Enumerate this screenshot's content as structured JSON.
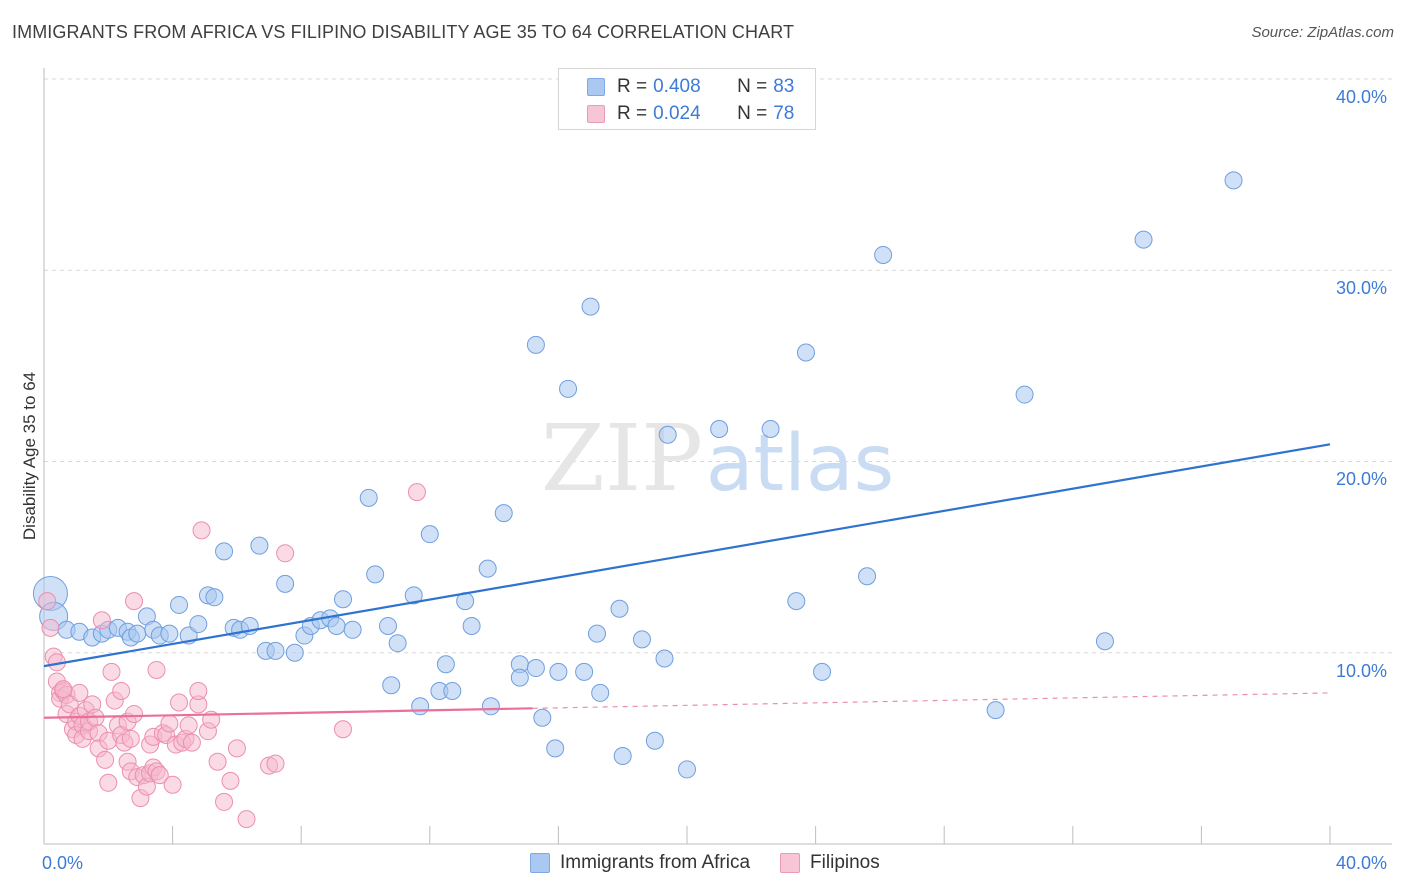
{
  "title": "IMMIGRANTS FROM AFRICA VS FILIPINO DISABILITY AGE 35 TO 64 CORRELATION CHART",
  "source": "Source: ZipAtlas.com",
  "watermark": {
    "zip": "ZIP",
    "atlas": "atlas"
  },
  "colors": {
    "blue": "#3d7bd6",
    "blue_fill": "#aac8f0",
    "blue_line": "#2e73cf",
    "pink": "#e8709a",
    "pink_fill": "#f6b8cc",
    "grid": "#d9d9d9",
    "axis": "#bdbdbd"
  },
  "legend": {
    "r_label": "R =",
    "n_label": "N =",
    "rows": [
      {
        "series": "Immigrants from Africa",
        "r": "0.408",
        "n": "83"
      },
      {
        "series": "Filipinos",
        "r": "0.024",
        "n": "78"
      }
    ]
  },
  "bottom_legend": [
    "Immigrants from Africa",
    "Filipinos"
  ],
  "chart_data": {
    "type": "scatter",
    "xlabel": "",
    "ylabel": "Disability Age 35 to 64",
    "xlim": [
      0,
      40
    ],
    "ylim": [
      0,
      40
    ],
    "x_tick_labels": [
      "0.0%",
      "40.0%"
    ],
    "y_ticks": [
      10,
      20,
      30,
      40
    ],
    "y_tick_labels": [
      "10.0%",
      "20.0%",
      "30.0%",
      "40.0%"
    ],
    "series": [
      {
        "name": "Immigrants from Africa",
        "trend": {
          "x": [
            0,
            40
          ],
          "y": [
            9.3,
            20.9
          ],
          "dashed_from": null
        },
        "points": [
          [
            0.2,
            13.1
          ],
          [
            0.3,
            11.9
          ],
          [
            0.7,
            11.2
          ],
          [
            1.1,
            11.1
          ],
          [
            1.5,
            10.8
          ],
          [
            1.8,
            11.0
          ],
          [
            2.0,
            11.2
          ],
          [
            2.3,
            11.3
          ],
          [
            2.6,
            11.1
          ],
          [
            2.7,
            10.8
          ],
          [
            2.9,
            11.0
          ],
          [
            3.2,
            11.9
          ],
          [
            3.4,
            11.2
          ],
          [
            3.6,
            10.9
          ],
          [
            3.9,
            11.0
          ],
          [
            4.2,
            12.5
          ],
          [
            4.5,
            10.9
          ],
          [
            4.8,
            11.5
          ],
          [
            5.1,
            13.0
          ],
          [
            5.3,
            12.9
          ],
          [
            5.6,
            15.3
          ],
          [
            5.9,
            11.3
          ],
          [
            6.1,
            11.2
          ],
          [
            6.4,
            11.4
          ],
          [
            6.7,
            15.6
          ],
          [
            6.9,
            10.1
          ],
          [
            7.2,
            10.1
          ],
          [
            7.5,
            13.6
          ],
          [
            7.8,
            10.0
          ],
          [
            8.1,
            10.9
          ],
          [
            8.3,
            11.4
          ],
          [
            8.6,
            11.7
          ],
          [
            8.9,
            11.8
          ],
          [
            9.1,
            11.4
          ],
          [
            9.3,
            12.8
          ],
          [
            9.6,
            11.2
          ],
          [
            10.1,
            18.1
          ],
          [
            10.3,
            14.1
          ],
          [
            10.7,
            11.4
          ],
          [
            11.0,
            10.5
          ],
          [
            10.8,
            8.3
          ],
          [
            11.5,
            13.0
          ],
          [
            11.7,
            7.2
          ],
          [
            12.0,
            16.2
          ],
          [
            12.3,
            8.0
          ],
          [
            12.5,
            9.4
          ],
          [
            12.7,
            8.0
          ],
          [
            13.1,
            12.7
          ],
          [
            13.3,
            11.4
          ],
          [
            13.8,
            14.4
          ],
          [
            13.9,
            7.2
          ],
          [
            14.3,
            17.3
          ],
          [
            14.8,
            9.4
          ],
          [
            14.8,
            8.7
          ],
          [
            15.3,
            9.2
          ],
          [
            15.5,
            6.6
          ],
          [
            15.3,
            26.1
          ],
          [
            15.9,
            5.0
          ],
          [
            16.0,
            9.0
          ],
          [
            16.3,
            23.8
          ],
          [
            16.8,
            9.0
          ],
          [
            17.0,
            28.1
          ],
          [
            17.2,
            11.0
          ],
          [
            17.3,
            7.9
          ],
          [
            17.9,
            12.3
          ],
          [
            18.0,
            4.6
          ],
          [
            18.6,
            10.7
          ],
          [
            19.0,
            5.4
          ],
          [
            19.3,
            9.7
          ],
          [
            19.4,
            21.4
          ],
          [
            20.0,
            3.9
          ],
          [
            21.0,
            21.7
          ],
          [
            22.6,
            21.7
          ],
          [
            23.4,
            12.7
          ],
          [
            23.7,
            25.7
          ],
          [
            24.2,
            9.0
          ],
          [
            25.6,
            14.0
          ],
          [
            26.1,
            30.8
          ],
          [
            29.6,
            7.0
          ],
          [
            30.5,
            23.5
          ],
          [
            33.0,
            10.6
          ],
          [
            34.2,
            31.6
          ],
          [
            37.0,
            34.7
          ]
        ],
        "sizes": {
          "0": "xl",
          "1": "lg"
        }
      },
      {
        "name": "Filipinos",
        "trend": {
          "x": [
            0,
            40
          ],
          "y": [
            6.6,
            7.9
          ],
          "dashed_from": 15.2
        },
        "points": [
          [
            0.1,
            12.7
          ],
          [
            0.2,
            11.3
          ],
          [
            0.3,
            9.8
          ],
          [
            0.4,
            9.5
          ],
          [
            0.4,
            8.5
          ],
          [
            0.5,
            7.9
          ],
          [
            0.5,
            7.6
          ],
          [
            0.6,
            8.0
          ],
          [
            0.7,
            7.8
          ],
          [
            0.7,
            6.8
          ],
          [
            0.8,
            7.3
          ],
          [
            0.9,
            6.0
          ],
          [
            1.0,
            6.4
          ],
          [
            1.0,
            5.7
          ],
          [
            1.1,
            6.7
          ],
          [
            1.2,
            6.2
          ],
          [
            1.2,
            5.5
          ],
          [
            1.3,
            7.0
          ],
          [
            1.4,
            5.9
          ],
          [
            1.4,
            6.4
          ],
          [
            1.5,
            7.3
          ],
          [
            1.6,
            6.6
          ],
          [
            1.7,
            5.8
          ],
          [
            1.7,
            5.0
          ],
          [
            1.8,
            11.7
          ],
          [
            1.9,
            4.4
          ],
          [
            2.0,
            3.2
          ],
          [
            2.0,
            5.4
          ],
          [
            2.1,
            9.0
          ],
          [
            2.2,
            7.5
          ],
          [
            2.3,
            6.2
          ],
          [
            2.4,
            5.7
          ],
          [
            2.5,
            5.3
          ],
          [
            2.6,
            4.3
          ],
          [
            2.6,
            6.4
          ],
          [
            2.7,
            5.5
          ],
          [
            2.7,
            3.8
          ],
          [
            2.8,
            6.8
          ],
          [
            2.8,
            12.7
          ],
          [
            2.9,
            3.5
          ],
          [
            3.0,
            2.4
          ],
          [
            3.1,
            3.6
          ],
          [
            3.2,
            3.0
          ],
          [
            3.3,
            5.2
          ],
          [
            3.3,
            3.7
          ],
          [
            3.4,
            4.0
          ],
          [
            3.4,
            5.6
          ],
          [
            3.5,
            3.8
          ],
          [
            3.5,
            9.1
          ],
          [
            3.6,
            3.6
          ],
          [
            3.7,
            5.8
          ],
          [
            3.8,
            5.7
          ],
          [
            3.9,
            6.3
          ],
          [
            4.0,
            3.1
          ],
          [
            4.1,
            5.2
          ],
          [
            4.2,
            7.4
          ],
          [
            4.3,
            5.3
          ],
          [
            4.4,
            5.5
          ],
          [
            4.5,
            6.2
          ],
          [
            4.6,
            5.3
          ],
          [
            4.8,
            7.3
          ],
          [
            4.9,
            16.4
          ],
          [
            5.1,
            5.9
          ],
          [
            5.2,
            6.5
          ],
          [
            5.4,
            4.3
          ],
          [
            5.6,
            2.2
          ],
          [
            5.8,
            3.3
          ],
          [
            6.0,
            5.0
          ],
          [
            6.3,
            1.3
          ],
          [
            7.0,
            4.1
          ],
          [
            7.2,
            4.2
          ],
          [
            7.5,
            15.2
          ],
          [
            9.3,
            6.0
          ],
          [
            11.6,
            18.4
          ],
          [
            4.8,
            8.0
          ],
          [
            0.6,
            8.1
          ],
          [
            1.1,
            7.9
          ],
          [
            2.4,
            8.0
          ]
        ]
      }
    ]
  }
}
